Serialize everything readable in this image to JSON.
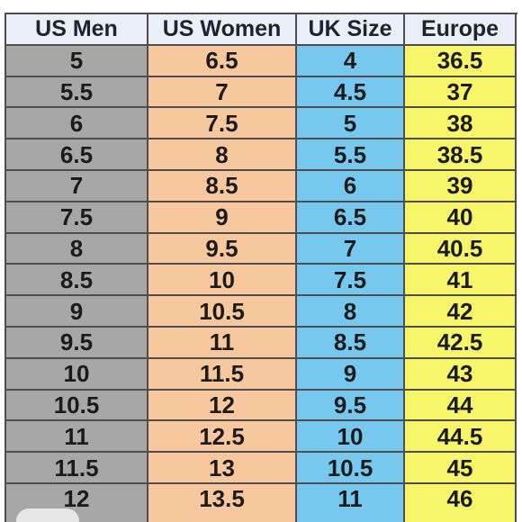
{
  "table": {
    "headers": [
      "US Men",
      "US Women",
      "UK Size",
      "Europe"
    ],
    "rows": [
      [
        "5",
        "6.5",
        "4",
        "36.5"
      ],
      [
        "5.5",
        "7",
        "4.5",
        "37"
      ],
      [
        "6",
        "7.5",
        "5",
        "38"
      ],
      [
        "6.5",
        "8",
        "5.5",
        "38.5"
      ],
      [
        "7",
        "8.5",
        "6",
        "39"
      ],
      [
        "7.5",
        "9",
        "6.5",
        "40"
      ],
      [
        "8",
        "9.5",
        "7",
        "40.5"
      ],
      [
        "8.5",
        "10",
        "7.5",
        "41"
      ],
      [
        "9",
        "10.5",
        "8",
        "42"
      ],
      [
        "9.5",
        "11",
        "8.5",
        "42.5"
      ],
      [
        "10",
        "11.5",
        "9",
        "43"
      ],
      [
        "10.5",
        "12",
        "9.5",
        "44"
      ],
      [
        "11",
        "12.5",
        "10",
        "44.5"
      ],
      [
        "11.5",
        "13",
        "10.5",
        "45"
      ],
      [
        "12",
        "13.5",
        "11",
        "46"
      ]
    ]
  },
  "colors": {
    "us_men": "#a7a7a7",
    "us_women": "#f7c79d",
    "uk_size": "#77c8ee",
    "europe": "#f7f56a",
    "header": "#e9eff8",
    "grid": "#4e4e4e"
  }
}
